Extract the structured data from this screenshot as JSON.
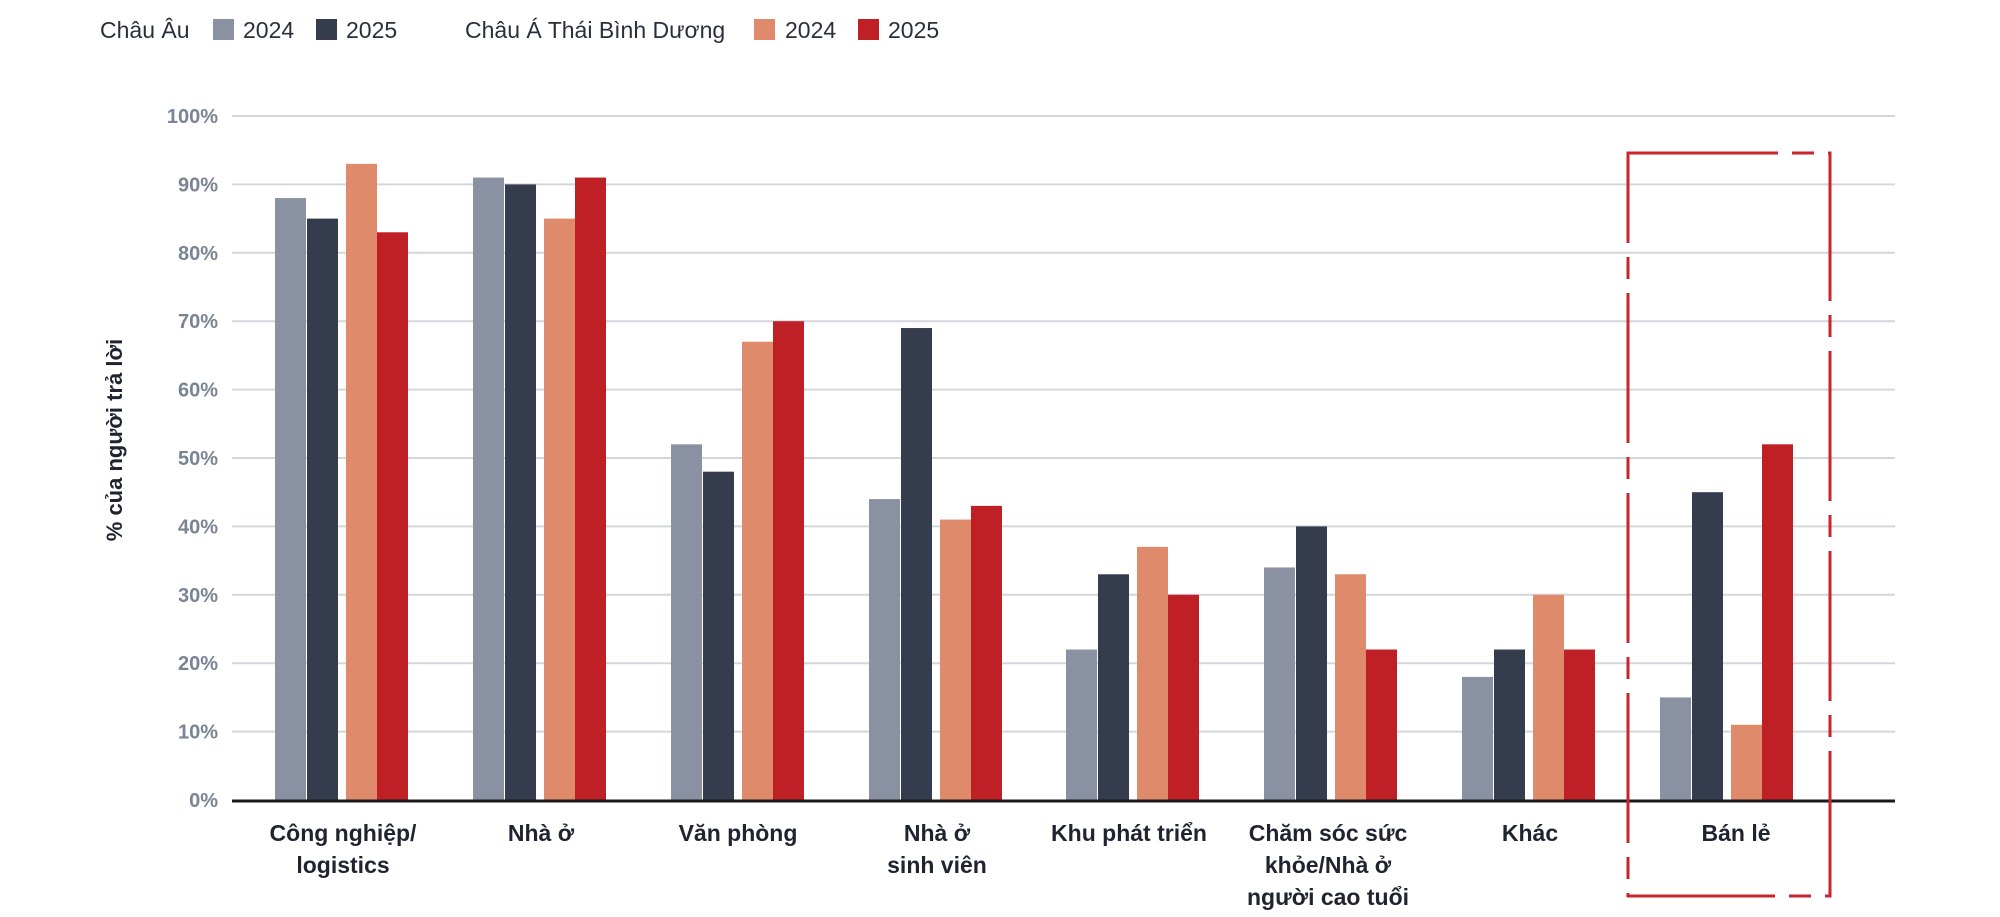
{
  "colors": {
    "europe_2024": "#8a91a2",
    "europe_2025": "#343c4e",
    "apac_2024": "#e08a6c",
    "apac_2025": "#bf2025",
    "grid": "#d3d6db",
    "axis": "#1a1a1a",
    "highlight_box": "#c8262c"
  },
  "legend": {
    "group1": "Châu Âu",
    "group2": "Châu Á Thái Bình Dương",
    "items": [
      {
        "label": "2024",
        "color_key": "europe_2024"
      },
      {
        "label": "2025",
        "color_key": "europe_2025"
      },
      {
        "label": "2024",
        "color_key": "apac_2024"
      },
      {
        "label": "2025",
        "color_key": "apac_2025"
      }
    ]
  },
  "chart_data": {
    "type": "bar",
    "ylabel": "% của người trả lời",
    "ylim": [
      0,
      100
    ],
    "yticks": [
      "0%",
      "10%",
      "20%",
      "30%",
      "40%",
      "50%",
      "60%",
      "70%",
      "80%",
      "90%",
      "100%"
    ],
    "grid": true,
    "legend_position": "top-left",
    "categories": [
      [
        "Công nghiệp/",
        "logistics"
      ],
      [
        "Nhà ở"
      ],
      [
        "Văn phòng"
      ],
      [
        "Nhà ở",
        "sinh viên"
      ],
      [
        "Khu phát triển"
      ],
      [
        "Chăm sóc sức",
        "khỏe/Nhà ở",
        "người cao tuổi"
      ],
      [
        "Khác"
      ],
      [
        "Bán lẻ"
      ]
    ],
    "series": [
      {
        "name": "Châu Âu 2024",
        "color_key": "europe_2024",
        "values": [
          88,
          91,
          52,
          44,
          22,
          34,
          18,
          15
        ]
      },
      {
        "name": "Châu Âu 2025",
        "color_key": "europe_2025",
        "values": [
          85,
          90,
          48,
          69,
          33,
          40,
          22,
          45
        ]
      },
      {
        "name": "Châu Á Thái Bình Dương 2024",
        "color_key": "apac_2024",
        "values": [
          93,
          85,
          67,
          41,
          37,
          33,
          30,
          11
        ]
      },
      {
        "name": "Châu Á Thái Bình Dương 2025",
        "color_key": "apac_2025",
        "values": [
          83,
          91,
          70,
          43,
          30,
          22,
          22,
          52
        ]
      }
    ],
    "highlighted_category": "Bán lẻ"
  }
}
